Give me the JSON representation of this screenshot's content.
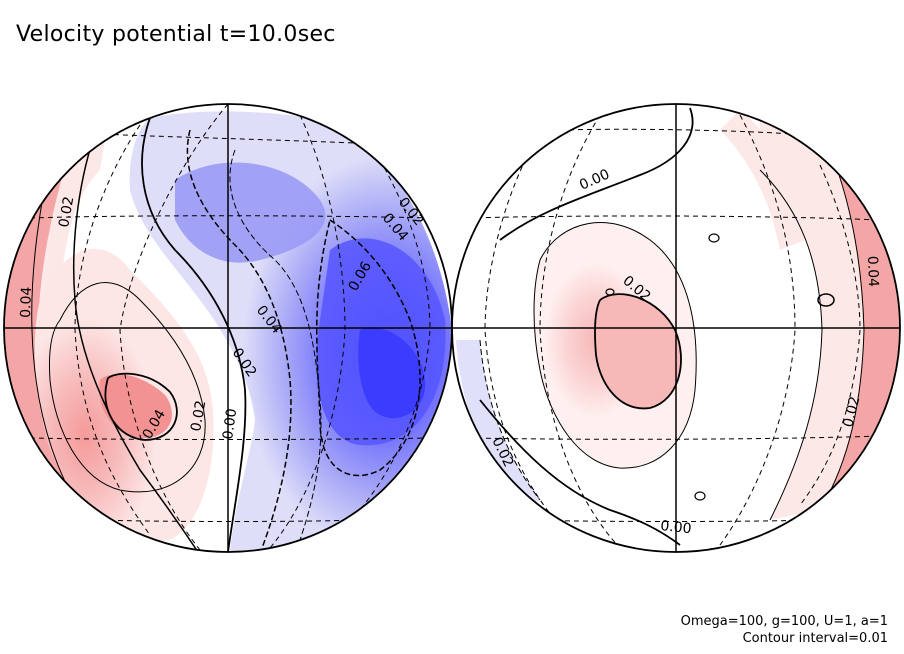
{
  "title": "Velocity potential t=10.0sec",
  "params_line": "Omega=100, g=100, U=1, a=1",
  "contour_line": "Contour interval=0.01",
  "colors": {
    "positive": "#f08080",
    "negative": "#4040ff",
    "line": "#000000",
    "grid": "#000000"
  },
  "contour_labels": [
    {
      "hemisphere": "left",
      "text": "0.02"
    },
    {
      "hemisphere": "left",
      "text": "0.04"
    },
    {
      "hemisphere": "left",
      "text": "0.04"
    },
    {
      "hemisphere": "left",
      "text": "0.02"
    },
    {
      "hemisphere": "left",
      "text": "0.00"
    },
    {
      "hemisphere": "left",
      "text": "0.02"
    },
    {
      "hemisphere": "left",
      "text": "0.04"
    },
    {
      "hemisphere": "left",
      "text": "0.06"
    },
    {
      "hemisphere": "left",
      "text": "0.04"
    },
    {
      "hemisphere": "left",
      "text": "0.02"
    },
    {
      "hemisphere": "right",
      "text": "0.00"
    },
    {
      "hemisphere": "right",
      "text": "0.02"
    },
    {
      "hemisphere": "right",
      "text": "0.04"
    },
    {
      "hemisphere": "right",
      "text": "0.02"
    },
    {
      "hemisphere": "right",
      "text": "0.02"
    },
    {
      "hemisphere": "right",
      "text": "0.00"
    }
  ]
}
